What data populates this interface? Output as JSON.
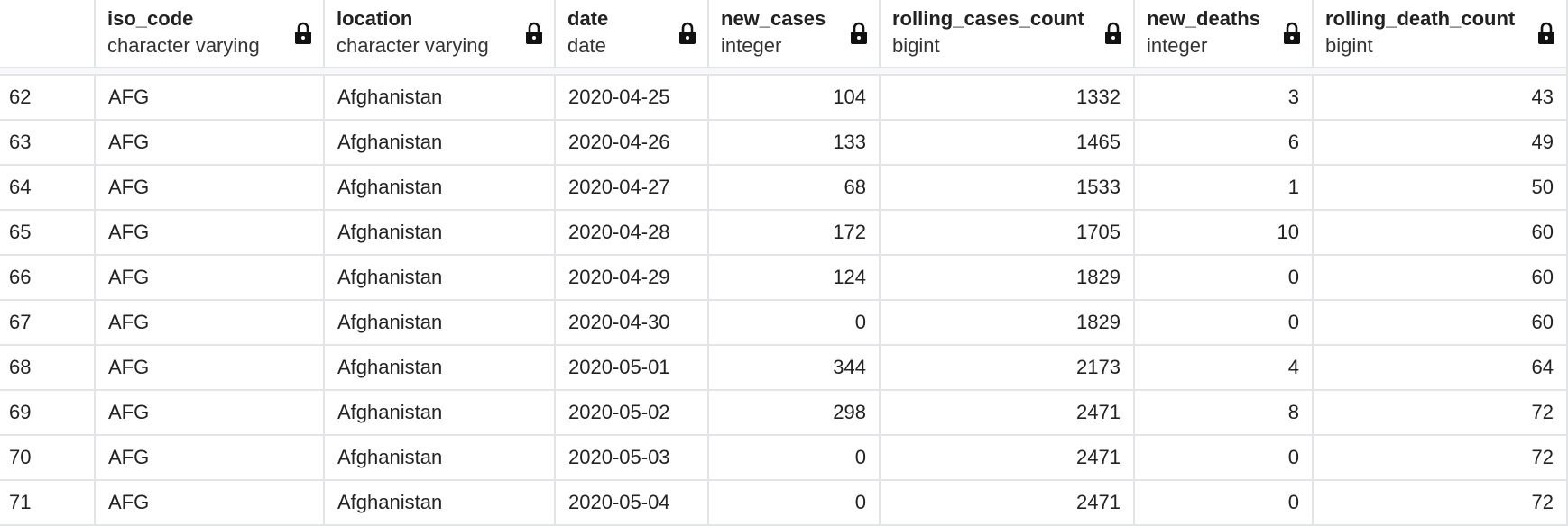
{
  "columns": [
    {
      "name": "iso_code",
      "type": "character varying"
    },
    {
      "name": "location",
      "type": "character varying"
    },
    {
      "name": "date",
      "type": "date"
    },
    {
      "name": "new_cases",
      "type": "integer"
    },
    {
      "name": "rolling_cases_count",
      "type": "bigint"
    },
    {
      "name": "new_deaths",
      "type": "integer"
    },
    {
      "name": "rolling_death_count",
      "type": "bigint"
    }
  ],
  "rows": [
    [
      62,
      "AFG",
      "Afghanistan",
      "2020-04-25",
      104,
      1332,
      3,
      43
    ],
    [
      63,
      "AFG",
      "Afghanistan",
      "2020-04-26",
      133,
      1465,
      6,
      49
    ],
    [
      64,
      "AFG",
      "Afghanistan",
      "2020-04-27",
      68,
      1533,
      1,
      50
    ],
    [
      65,
      "AFG",
      "Afghanistan",
      "2020-04-28",
      172,
      1705,
      10,
      60
    ],
    [
      66,
      "AFG",
      "Afghanistan",
      "2020-04-29",
      124,
      1829,
      0,
      60
    ],
    [
      67,
      "AFG",
      "Afghanistan",
      "2020-04-30",
      0,
      1829,
      0,
      60
    ],
    [
      68,
      "AFG",
      "Afghanistan",
      "2020-05-01",
      344,
      2173,
      4,
      64
    ],
    [
      69,
      "AFG",
      "Afghanistan",
      "2020-05-02",
      298,
      2471,
      8,
      72
    ],
    [
      70,
      "AFG",
      "Afghanistan",
      "2020-05-03",
      0,
      2471,
      0,
      72
    ],
    [
      71,
      "AFG",
      "Afghanistan",
      "2020-05-04",
      0,
      2471,
      0,
      72
    ]
  ]
}
